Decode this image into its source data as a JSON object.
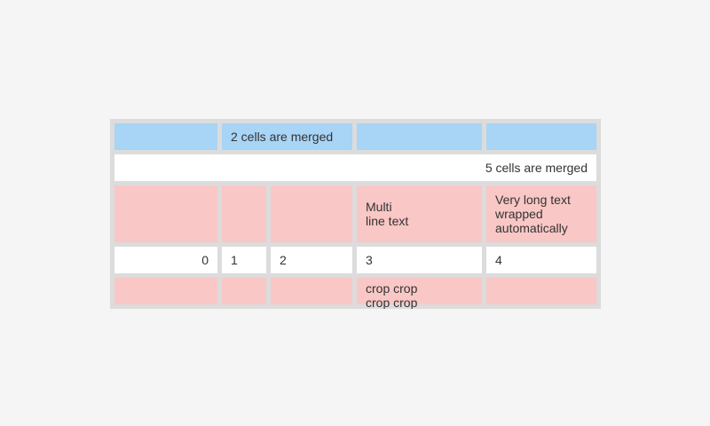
{
  "colors": {
    "page_background": "#f5f5f5",
    "table_background": "#dcdcdc",
    "header_cell_background": "#a8d4f5",
    "highlight_cell_background": "#f9c7c5",
    "default_cell_background": "#ffffff",
    "text": "#333333"
  },
  "table": {
    "row1": {
      "merged_text": "2 cells are merged"
    },
    "row2": {
      "merged_text": "5 cells are merged"
    },
    "row3": {
      "multiline_text": "Multi\nline text",
      "wrapped_text": "Very long text wrapped automatically"
    },
    "row4": {
      "values": [
        "0",
        "1",
        "2",
        "3",
        "4"
      ]
    },
    "row5": {
      "cropped_text": "crop crop crop crop"
    }
  }
}
